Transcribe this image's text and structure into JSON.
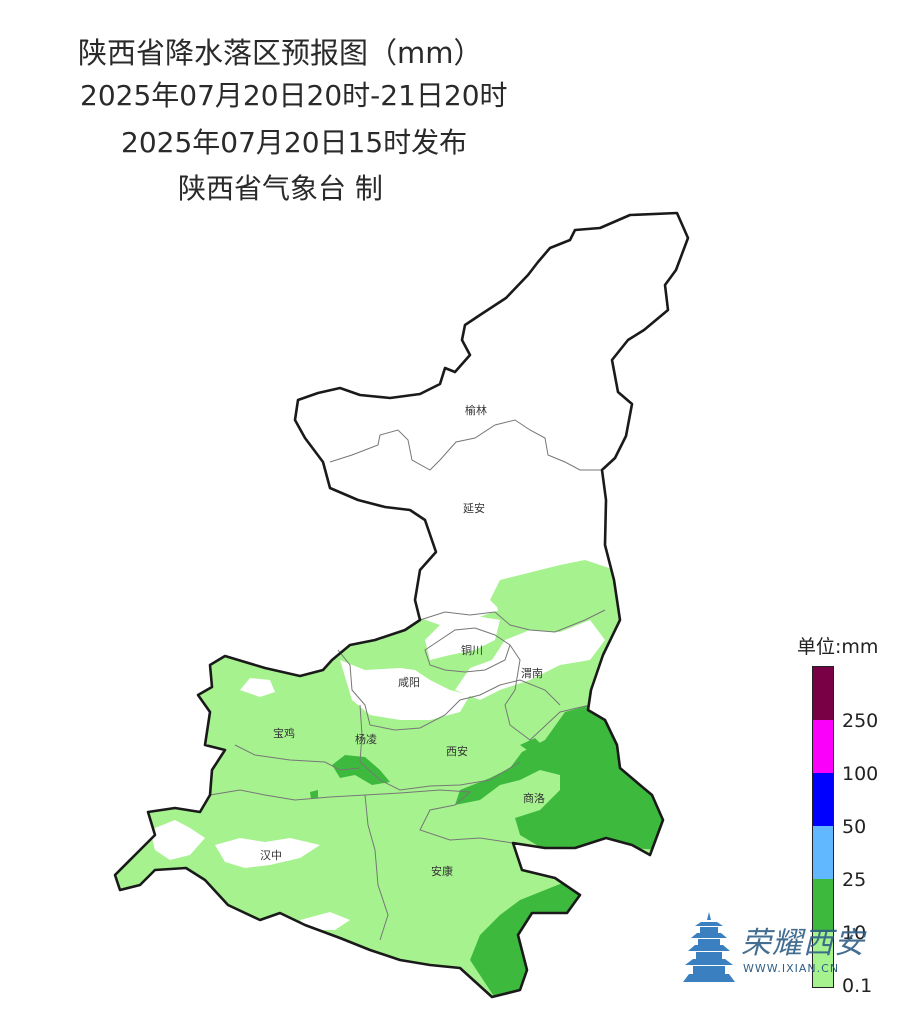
{
  "header": {
    "title": "陕西省降水落区预报图（mm）",
    "period": "2025年07月20日20时-21日20时",
    "issued": "2025年07月20日15时发布",
    "producer": "陕西省气象台 制"
  },
  "map": {
    "cities": [
      "榆林",
      "延安",
      "铜川",
      "咸阳",
      "渭南",
      "宝鸡",
      "杨凌",
      "西安",
      "商洛",
      "汉中",
      "安康"
    ],
    "colors": {
      "border": "#222222",
      "rain_light": "#a6f28f",
      "rain_moderate": "#3dba3d"
    }
  },
  "legend": {
    "title": "单位:mm",
    "ticks": [
      "250",
      "100",
      "50",
      "25",
      "10",
      "0.1"
    ],
    "colors": [
      "#7a0046",
      "#fa00fa",
      "#0000fe",
      "#61b8ff",
      "#3dba3d",
      "#a6f28f"
    ]
  },
  "watermark": {
    "text": "荣耀西安",
    "url": "WWW.IXIAN.CN"
  }
}
